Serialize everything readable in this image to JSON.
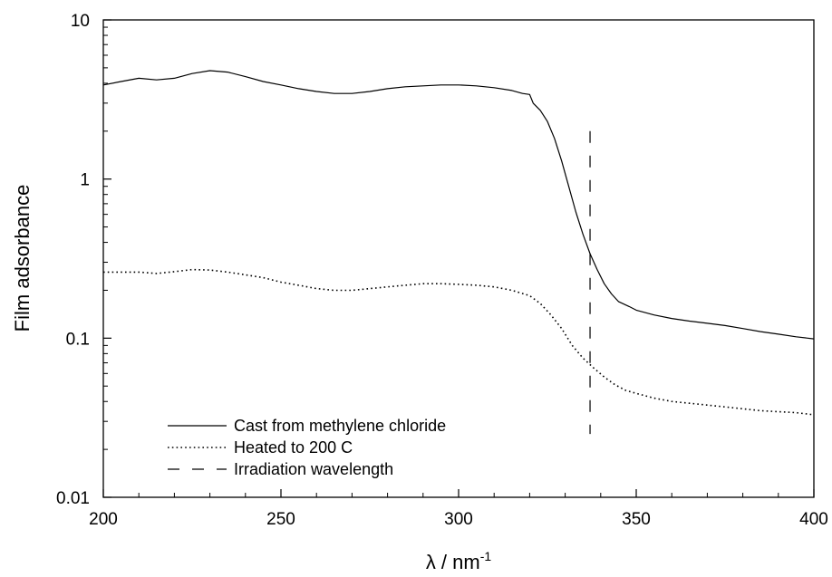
{
  "chart_data": {
    "type": "line",
    "xlabel": "λ / nm",
    "xlabel_superscript": "-1",
    "ylabel": "Film adsorbance",
    "xlim": [
      200,
      400
    ],
    "ylim": [
      0.01,
      10
    ],
    "yscale": "log",
    "grid": false,
    "legend_position": "bottom-left",
    "x_ticks": [
      200,
      250,
      300,
      350,
      400
    ],
    "x_tick_labels": [
      "200",
      "250",
      "300",
      "350",
      "400"
    ],
    "y_ticks": [
      0.01,
      0.1,
      1,
      10
    ],
    "y_tick_labels": [
      "0.01",
      "0.1",
      "1",
      "10"
    ],
    "series": [
      {
        "name": "Cast from methylene chloride",
        "style": "solid",
        "color": "#000000",
        "x": [
          200,
          205,
          210,
          215,
          220,
          225,
          230,
          235,
          240,
          245,
          250,
          255,
          260,
          265,
          270,
          275,
          280,
          285,
          290,
          295,
          300,
          305,
          310,
          315,
          318,
          320,
          321,
          323,
          325,
          327,
          329,
          331,
          333,
          335,
          337,
          339,
          341,
          343,
          345,
          348,
          350,
          355,
          360,
          365,
          370,
          375,
          380,
          385,
          390,
          395,
          400
        ],
        "y": [
          3.9,
          4.1,
          4.3,
          4.2,
          4.3,
          4.6,
          4.8,
          4.7,
          4.4,
          4.1,
          3.9,
          3.7,
          3.55,
          3.45,
          3.45,
          3.55,
          3.7,
          3.8,
          3.85,
          3.9,
          3.9,
          3.85,
          3.75,
          3.6,
          3.45,
          3.4,
          3.0,
          2.7,
          2.3,
          1.8,
          1.3,
          0.9,
          0.62,
          0.45,
          0.34,
          0.27,
          0.22,
          0.19,
          0.17,
          0.158,
          0.15,
          0.14,
          0.133,
          0.128,
          0.124,
          0.12,
          0.115,
          0.11,
          0.106,
          0.102,
          0.099
        ]
      },
      {
        "name": "Heated to 200 C",
        "style": "dotted",
        "color": "#000000",
        "x": [
          200,
          205,
          210,
          215,
          220,
          225,
          230,
          235,
          240,
          245,
          250,
          255,
          260,
          265,
          270,
          275,
          280,
          285,
          290,
          295,
          300,
          305,
          310,
          315,
          320,
          323,
          326,
          329,
          332,
          335,
          338,
          341,
          344,
          347,
          350,
          355,
          360,
          365,
          370,
          375,
          380,
          385,
          390,
          395,
          400
        ],
        "y": [
          0.26,
          0.26,
          0.26,
          0.255,
          0.262,
          0.27,
          0.268,
          0.26,
          0.25,
          0.24,
          0.225,
          0.215,
          0.205,
          0.2,
          0.2,
          0.205,
          0.21,
          0.215,
          0.22,
          0.22,
          0.218,
          0.215,
          0.21,
          0.2,
          0.185,
          0.165,
          0.14,
          0.115,
          0.09,
          0.075,
          0.065,
          0.057,
          0.051,
          0.047,
          0.045,
          0.042,
          0.04,
          0.039,
          0.038,
          0.037,
          0.036,
          0.035,
          0.0345,
          0.034,
          0.033
        ]
      }
    ],
    "vlines": [
      {
        "name": "Irradiation wavelength",
        "x": 337,
        "y_range": [
          0.025,
          2.0
        ],
        "style": "dashed",
        "color": "#000000"
      }
    ]
  }
}
